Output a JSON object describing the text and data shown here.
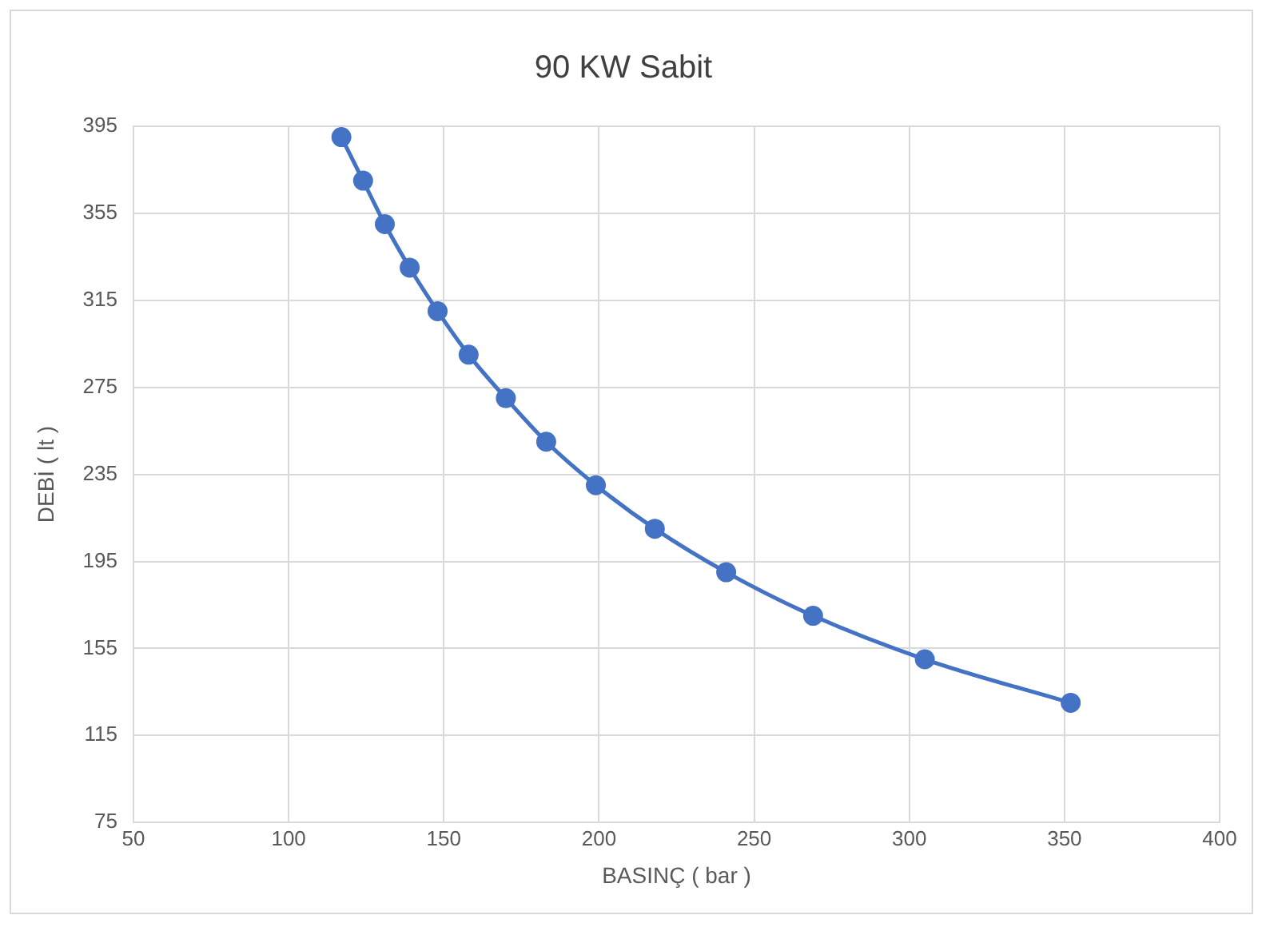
{
  "chart_data": {
    "type": "line",
    "title": "90 KW Sabit",
    "xlabel": "BASINÇ ( bar )",
    "ylabel": "DEBİ ( lt )",
    "x": [
      117,
      124,
      131,
      139,
      148,
      158,
      170,
      183,
      199,
      218,
      241,
      269,
      305,
      352
    ],
    "series": [
      {
        "color": "#4472c4",
        "values": [
          390,
          370,
          350,
          330,
          310,
          290,
          270,
          250,
          230,
          210,
          190,
          170,
          150,
          130
        ]
      }
    ],
    "xlim": [
      50,
      400
    ],
    "xticks": [
      50,
      100,
      150,
      200,
      250,
      300,
      350,
      400
    ],
    "ylim": [
      75,
      395
    ],
    "yticks": [
      75,
      115,
      155,
      195,
      235,
      275,
      315,
      355,
      395
    ],
    "grid": true,
    "legend": false,
    "marker": "circle",
    "line_style": "solid"
  }
}
